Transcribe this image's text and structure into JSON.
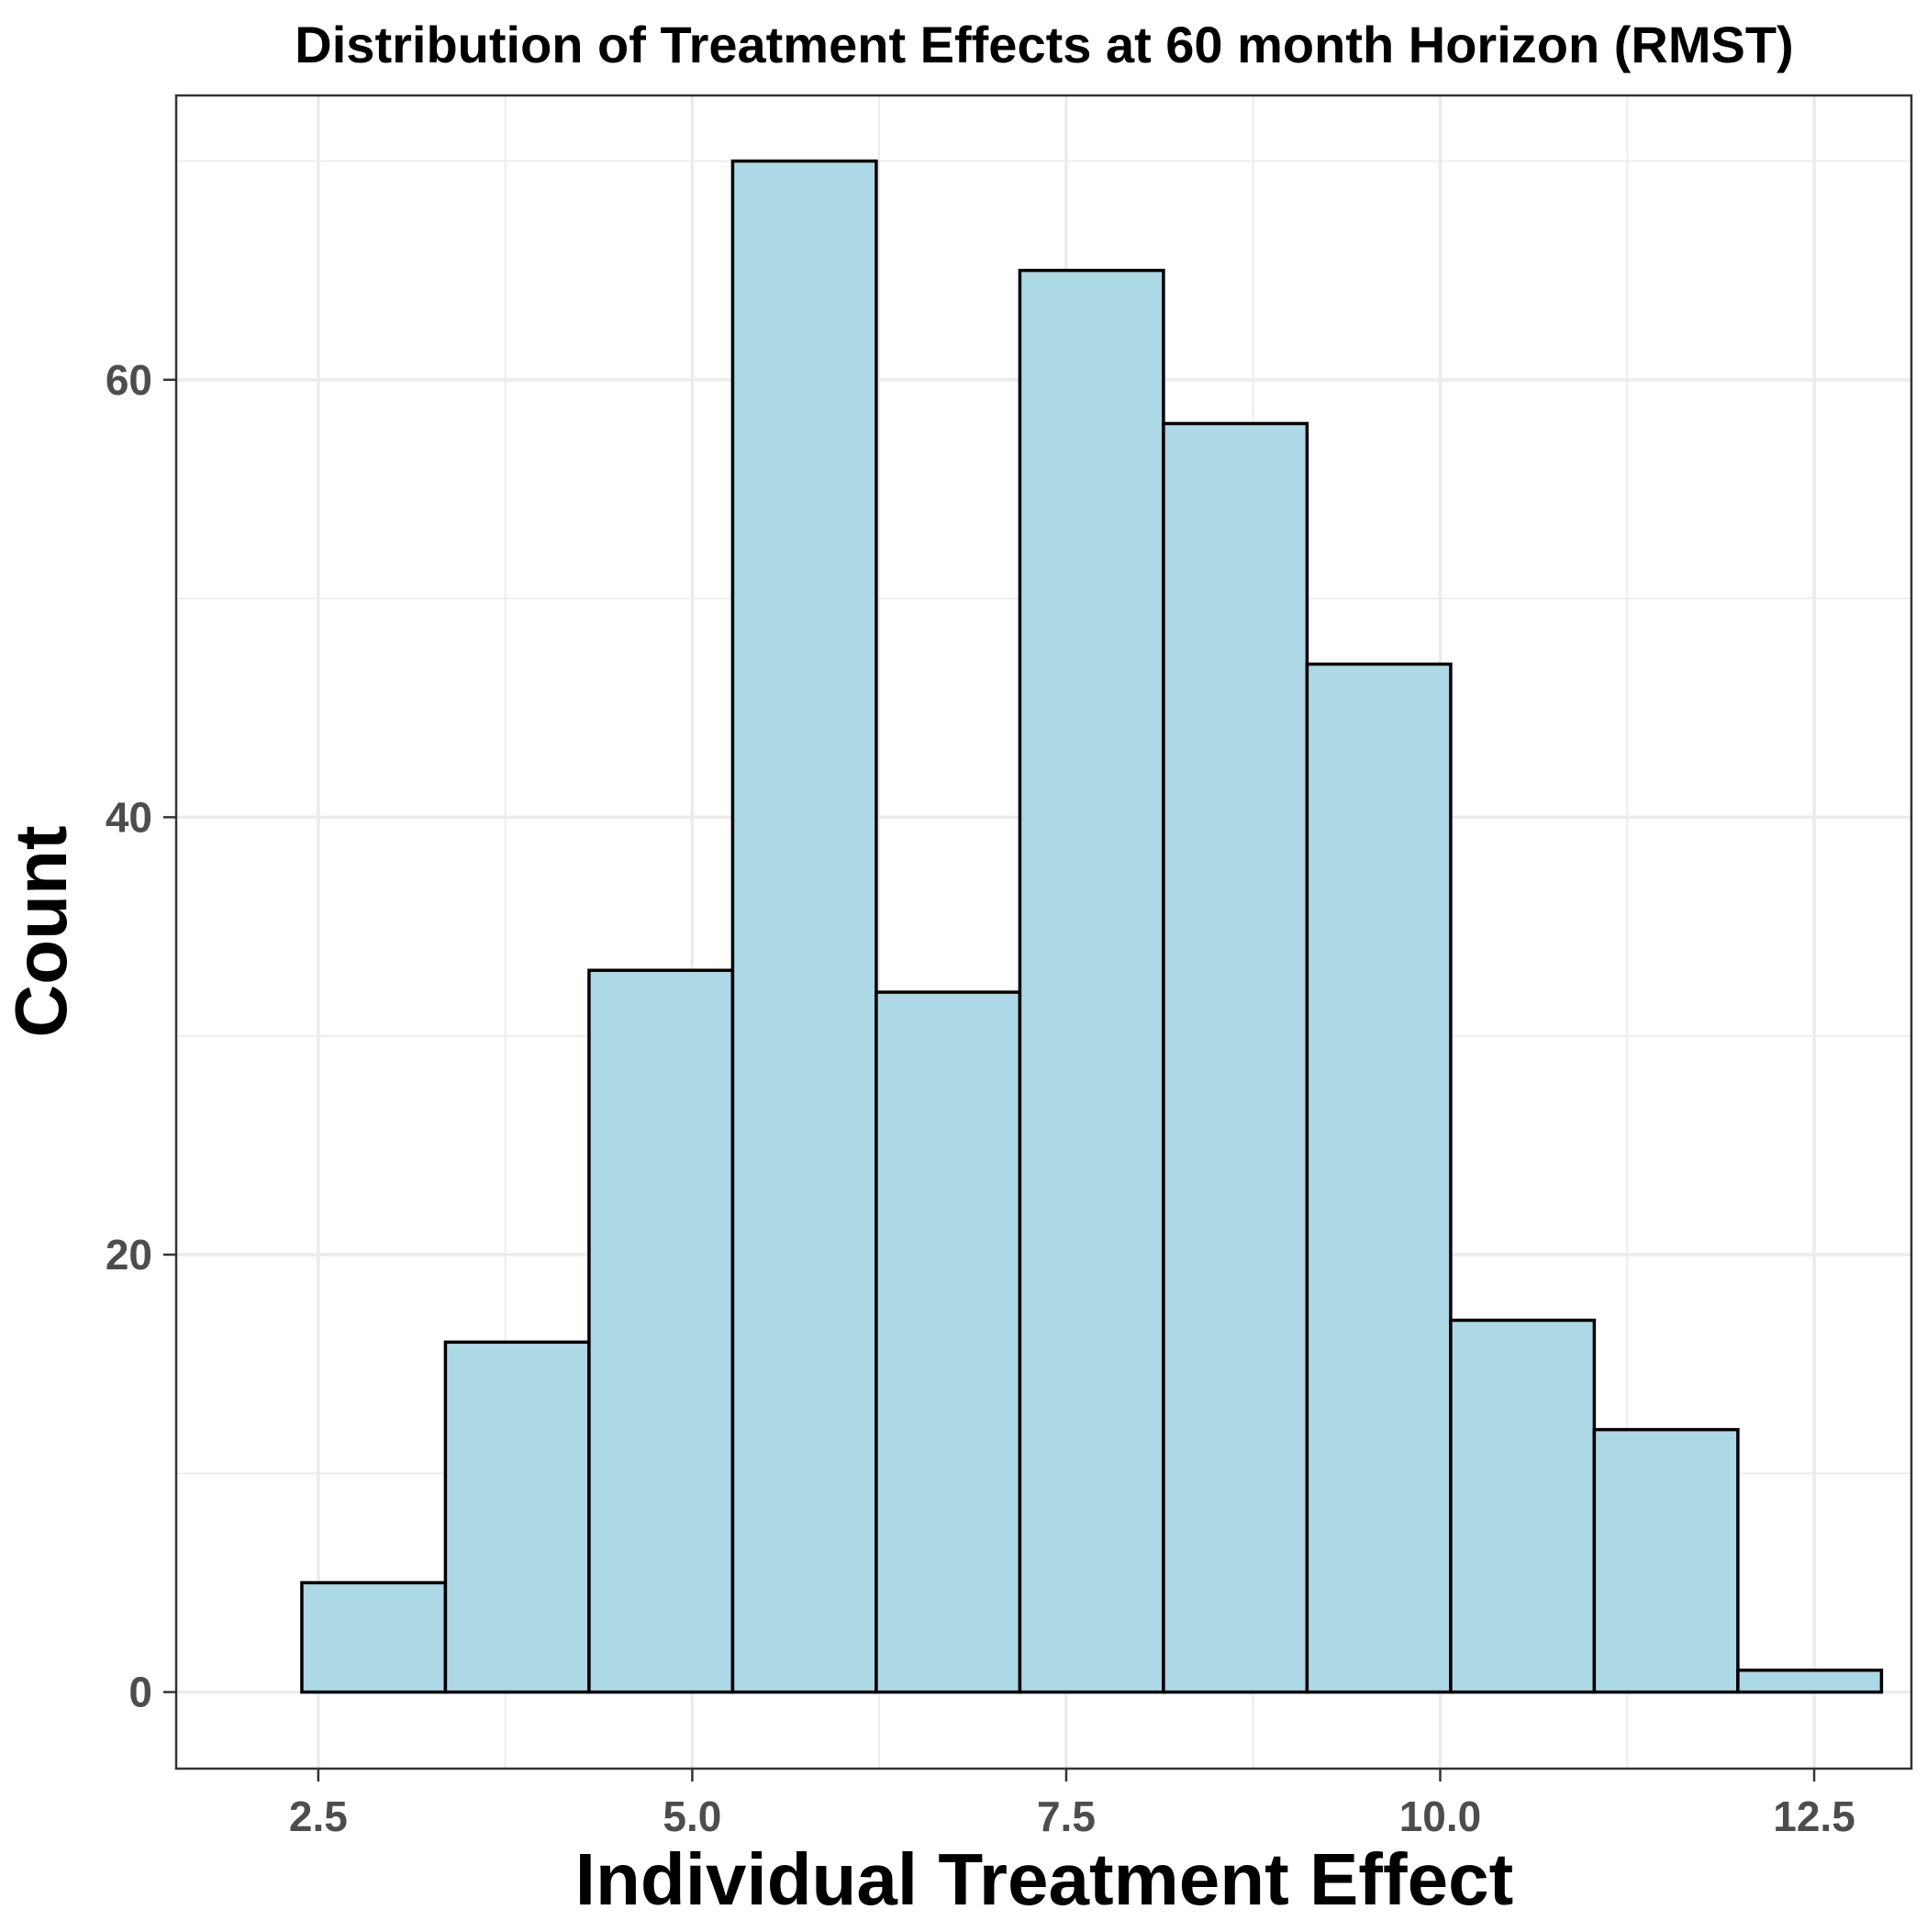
{
  "chart_data": {
    "type": "bar",
    "subtype": "histogram",
    "title": "Distribution of Treatment Effects at 60 month Horizon (RMST)",
    "xlabel": "Individual Treatment Effect",
    "ylabel": "Count",
    "xlim": [
      1.55,
      13.15
    ],
    "ylim": [
      -3.5,
      73
    ],
    "x_ticks": [
      2.5,
      5.0,
      7.5,
      10.0,
      12.5
    ],
    "x_tick_labels": [
      "2.5",
      "5.0",
      "7.5",
      "10.0",
      "12.5"
    ],
    "y_ticks": [
      0,
      20,
      40,
      60
    ],
    "y_tick_labels": [
      "0",
      "20",
      "40",
      "60"
    ],
    "bin_edges": [
      2.39,
      3.35,
      4.31,
      5.27,
      6.23,
      7.19,
      8.15,
      9.11,
      10.07,
      11.03,
      11.99,
      12.95
    ],
    "counts": [
      5,
      16,
      33,
      70,
      32,
      65,
      58,
      47,
      17,
      12,
      1
    ],
    "fill_color": "#add8e6",
    "edge_color": "#000000",
    "grid": true,
    "legend": "none"
  }
}
